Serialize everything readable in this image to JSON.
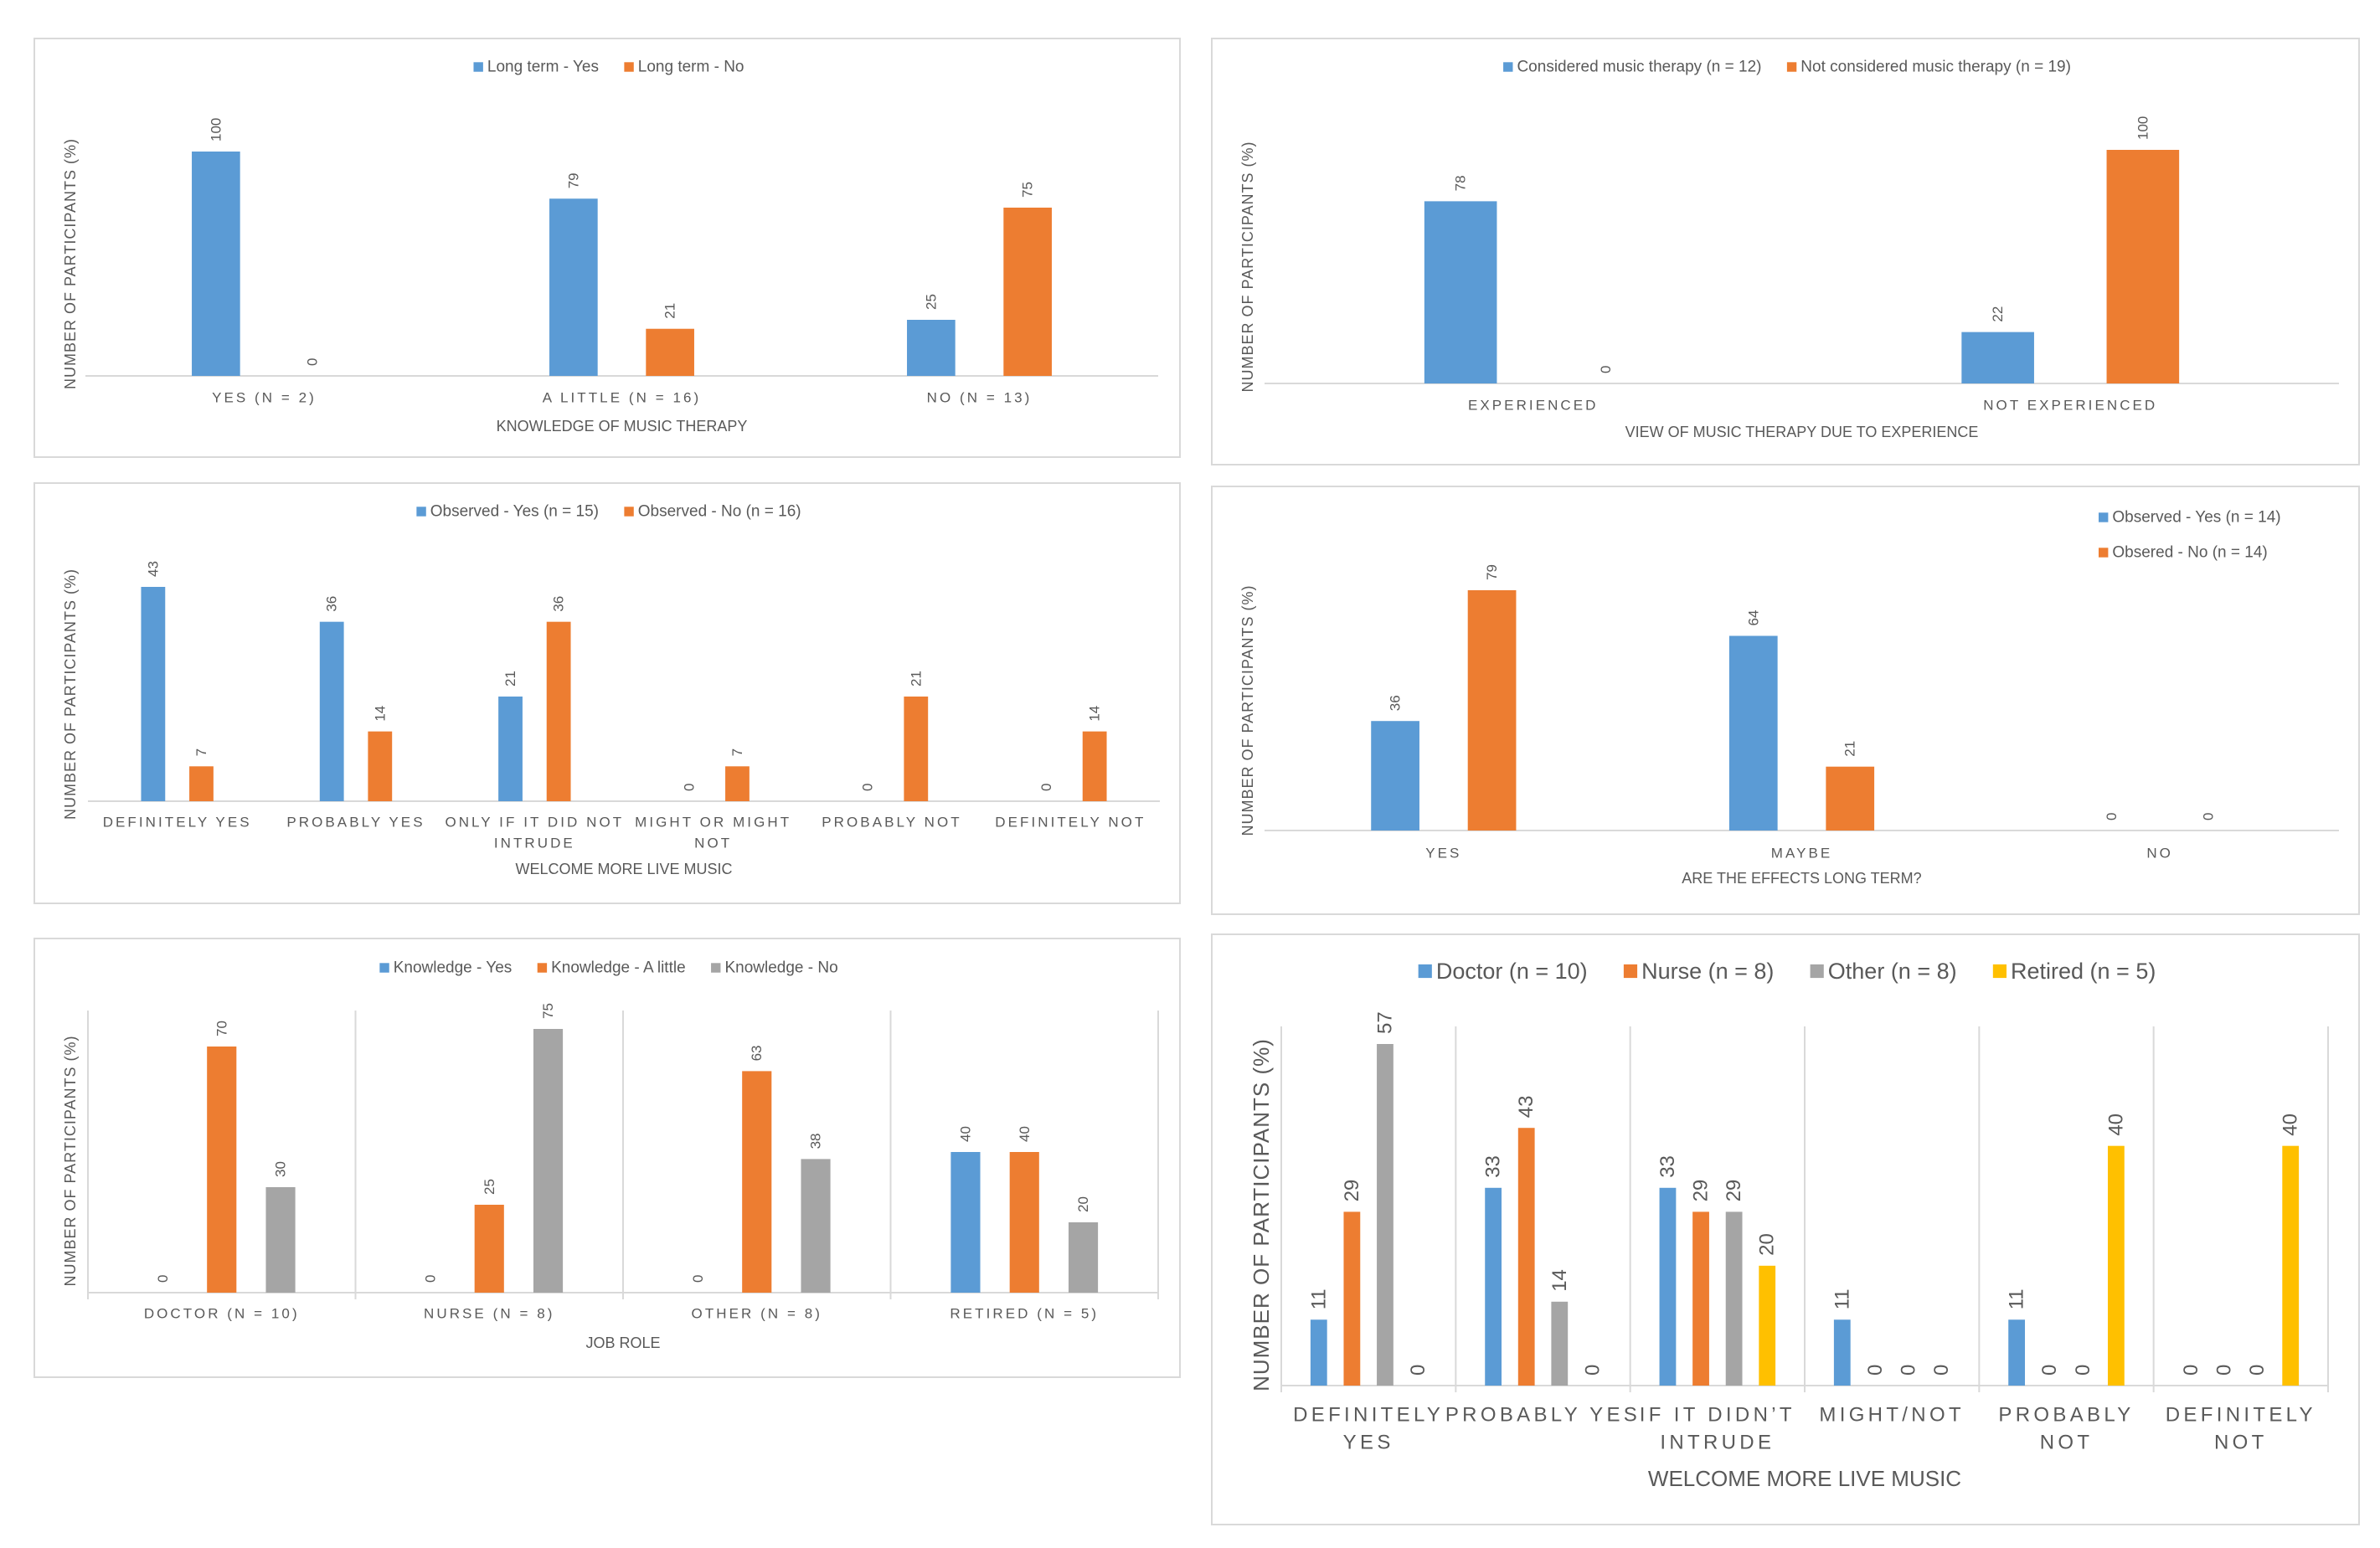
{
  "chart_data": [
    {
      "type": "bar",
      "title": "",
      "xlabel": "KNOWLEDGE OF MUSIC THERAPY",
      "ylabel": "NUMBER OF PARTICIPANTS (%)",
      "categories": [
        [
          "YES (N = 2)"
        ],
        [
          "A LITTLE (N = 16)"
        ],
        [
          "NO (N = 13)"
        ]
      ],
      "series": [
        {
          "name": "Long term - Yes",
          "color": "#5B9BD5",
          "values": [
            100,
            79,
            25
          ]
        },
        {
          "name": "Long term - No",
          "color": "#ED7D31",
          "values": [
            0,
            21,
            75
          ]
        }
      ],
      "ylim": [
        0,
        100
      ],
      "legend": "top",
      "grid": false,
      "data_labels": true
    },
    {
      "type": "bar",
      "title": "",
      "xlabel": "VIEW OF MUSIC THERAPY DUE TO EXPERIENCE",
      "ylabel": "NUMBER OF PARTICIPANTS (%)",
      "categories": [
        [
          "EXPERIENCED"
        ],
        [
          "NOT EXPERIENCED"
        ]
      ],
      "series": [
        {
          "name": "Considered music therapy (n = 12)",
          "color": "#5B9BD5",
          "values": [
            78,
            22
          ]
        },
        {
          "name": "Not considered music therapy (n = 19)",
          "color": "#ED7D31",
          "values": [
            0,
            100
          ]
        }
      ],
      "ylim": [
        0,
        100
      ],
      "legend": "top",
      "grid": false,
      "data_labels": true
    },
    {
      "type": "bar",
      "title": "",
      "xlabel": "WELCOME MORE LIVE MUSIC",
      "ylabel": "NUMBER OF PARTICIPANTS (%)",
      "categories": [
        [
          "DEFINITELY YES"
        ],
        [
          "PROBABLY YES"
        ],
        [
          "ONLY IF IT DID NOT",
          "INTRUDE"
        ],
        [
          "MIGHT OR MIGHT",
          "NOT"
        ],
        [
          "PROBABLY NOT"
        ],
        [
          "DEFINITELY NOT"
        ]
      ],
      "series": [
        {
          "name": "Observed - Yes (n = 15)",
          "color": "#5B9BD5",
          "values": [
            43,
            36,
            21,
            0,
            0,
            0
          ]
        },
        {
          "name": "Observed - No (n = 16)",
          "color": "#ED7D31",
          "values": [
            7,
            14,
            36,
            7,
            21,
            14
          ]
        }
      ],
      "ylim": [
        0,
        43
      ],
      "legend": "top",
      "grid": false,
      "data_labels": true
    },
    {
      "type": "bar",
      "title": "",
      "xlabel": "ARE THE EFFECTS LONG TERM?",
      "ylabel": "NUMBER OF PARTICIPANTS (%)",
      "categories": [
        [
          "YES"
        ],
        [
          "MAYBE"
        ],
        [
          "NO"
        ]
      ],
      "series": [
        {
          "name": "Observed - Yes (n = 14)",
          "color": "#5B9BD5",
          "values": [
            36,
            64,
            0
          ]
        },
        {
          "name": "Obsered - No (n = 14)",
          "color": "#ED7D31",
          "values": [
            79,
            21,
            0
          ]
        }
      ],
      "ylim": [
        0,
        79
      ],
      "legend": "right",
      "grid": false,
      "data_labels": true
    },
    {
      "type": "bar",
      "title": "",
      "xlabel": "JOB ROLE",
      "ylabel": "NUMBER OF PARTICIPANTS (%)",
      "categories": [
        [
          "DOCTOR (N = 10)"
        ],
        [
          "NURSE (N = 8)"
        ],
        [
          "OTHER (N = 8)"
        ],
        [
          "RETIRED (N = 5)"
        ]
      ],
      "series": [
        {
          "name": "Knowledge - Yes",
          "color": "#5B9BD5",
          "values": [
            0,
            0,
            0,
            40
          ]
        },
        {
          "name": "Knowledge - A little",
          "color": "#ED7D31",
          "values": [
            70,
            25,
            63,
            40
          ]
        },
        {
          "name": "Knowledge - No",
          "color": "#A5A5A5",
          "values": [
            30,
            75,
            38,
            20
          ]
        }
      ],
      "ylim": [
        0,
        75
      ],
      "legend": "top",
      "grid": false,
      "data_labels": true,
      "category_separators": true
    },
    {
      "type": "bar",
      "title": "",
      "xlabel": "WELCOME MORE LIVE MUSIC",
      "ylabel": "NUMBER OF PARTICIPANTS (%)",
      "categories": [
        [
          "DEFINITELY",
          "YES"
        ],
        [
          "PROBABLY YES"
        ],
        [
          "IF IT DIDN’T",
          "INTRUDE"
        ],
        [
          "MIGHT/NOT"
        ],
        [
          "PROBABLY",
          "NOT"
        ],
        [
          "DEFINITELY",
          "NOT"
        ]
      ],
      "series": [
        {
          "name": "Doctor (n = 10)",
          "color": "#5B9BD5",
          "values": [
            11,
            33,
            33,
            11,
            11,
            0
          ]
        },
        {
          "name": "Nurse (n = 8)",
          "color": "#ED7D31",
          "values": [
            29,
            43,
            29,
            0,
            0,
            0
          ]
        },
        {
          "name": "Other (n = 8)",
          "color": "#A5A5A5",
          "values": [
            57,
            14,
            29,
            0,
            0,
            0
          ]
        },
        {
          "name": "Retired (n = 5)",
          "color": "#FFC000",
          "values": [
            0,
            0,
            20,
            0,
            40,
            40
          ]
        }
      ],
      "ylim": [
        0,
        57
      ],
      "legend": "top",
      "grid": false,
      "data_labels": true,
      "category_separators": true
    }
  ]
}
